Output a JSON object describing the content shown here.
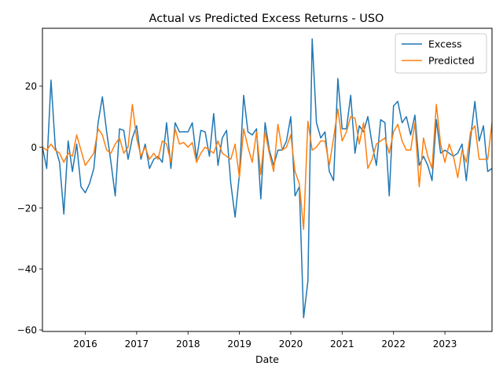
{
  "chart_data": {
    "type": "line",
    "title": "Actual vs Predicted Excess Returns - USO",
    "xlabel": "Date",
    "ylabel": "",
    "x_start": "2015-03",
    "xlim": [
      "2015-03",
      "2023-12"
    ],
    "ylim": [
      -60.5,
      39
    ],
    "x_ticks": [
      {
        "label": "2016",
        "date": "2016-01"
      },
      {
        "label": "2017",
        "date": "2017-01"
      },
      {
        "label": "2018",
        "date": "2018-01"
      },
      {
        "label": "2019",
        "date": "2019-01"
      },
      {
        "label": "2020",
        "date": "2020-01"
      },
      {
        "label": "2021",
        "date": "2021-01"
      },
      {
        "label": "2022",
        "date": "2022-01"
      },
      {
        "label": "2023",
        "date": "2023-01"
      }
    ],
    "y_ticks": [
      -60,
      -40,
      -20,
      0,
      20
    ],
    "grid": false,
    "legend_position": "top-right",
    "series": [
      {
        "name": "Excess",
        "color": "#1f77b4",
        "values": [
          0,
          -7,
          22,
          0,
          -5,
          -22,
          2,
          -8,
          1,
          -13,
          -15,
          -12,
          -7,
          8,
          16.5,
          5,
          -5,
          -16,
          6,
          5.5,
          -4,
          3,
          7,
          -4,
          1,
          -7,
          -4,
          -3,
          -5,
          8,
          -7,
          8,
          5,
          5,
          5,
          8,
          -4,
          5.5,
          5,
          -3,
          11,
          -6,
          3,
          5.5,
          -12,
          -23,
          -9,
          17,
          5,
          4,
          6,
          -17,
          8,
          -1,
          -6,
          -1,
          -1,
          2,
          10,
          -16,
          -13,
          -56,
          -44,
          35.5,
          8,
          3,
          5,
          -8,
          -11,
          22.5,
          6,
          6,
          17,
          -2,
          7,
          5,
          10,
          1,
          -6,
          9,
          8,
          -16,
          13.5,
          15,
          8,
          10,
          4,
          10.5,
          -6,
          -3,
          -6,
          -11,
          9,
          -2,
          -1,
          -2,
          -3,
          -2,
          1,
          -11,
          3,
          15,
          2,
          7,
          -8,
          -7,
          -6
        ]
      },
      {
        "name": "Predicted",
        "color": "#ff7f0e",
        "values": [
          0,
          -1,
          1,
          -1,
          -2,
          -5,
          -2,
          -3,
          4,
          -1,
          -6,
          -4,
          -2,
          6,
          4,
          -1,
          -2,
          1,
          3,
          -2,
          0,
          14,
          3,
          -3,
          0,
          -4,
          -2,
          -4,
          2,
          1,
          -5,
          6,
          1,
          1.5,
          0,
          1.5,
          -5,
          -2,
          0,
          -1,
          -2,
          2,
          -2,
          -3,
          -4,
          1,
          -10,
          6,
          0,
          -5,
          5,
          -9,
          5,
          -2,
          -8,
          7.5,
          -1,
          0,
          4,
          -8,
          -12,
          -27,
          8.5,
          -1,
          0,
          2,
          2,
          -6,
          3,
          12.5,
          2,
          5,
          10,
          9.5,
          1,
          8,
          -7,
          -4,
          1,
          2,
          3,
          -2,
          5,
          7.5,
          2,
          -1,
          -1,
          8,
          -13,
          3,
          -3,
          -7,
          14,
          1,
          -5,
          1,
          -3,
          -10,
          -1,
          -5,
          5,
          7,
          -4,
          -4,
          -4,
          8,
          10
        ]
      }
    ]
  }
}
